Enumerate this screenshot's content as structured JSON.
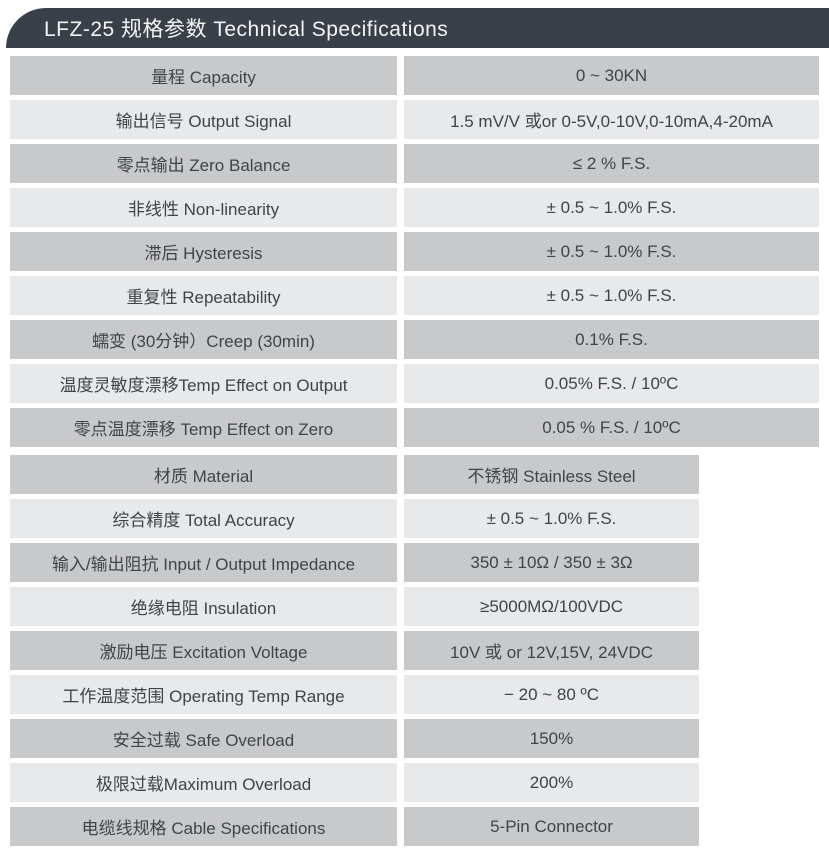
{
  "header": {
    "title": "LFZ-25 规格参数 Technical Specifications",
    "bar_color": "#394049",
    "text_color": "#f4f4f4"
  },
  "colors": {
    "row_dark": "#c8c9cb",
    "row_light": "#e8e9eb",
    "cell_text": "#404347",
    "page_background": "#ffffff"
  },
  "table": {
    "sections": [
      {
        "rows": [
          {
            "label": "量程 Capacity",
            "value": "0 ~ 30KN"
          },
          {
            "label": "输出信号 Output Signal",
            "value": "1.5 mV/V 或or 0-5V,0-10V,0-10mA,4-20mA"
          },
          {
            "label": "零点输出 Zero Balance",
            "value": "≤ 2 % F.S."
          },
          {
            "label": "非线性 Non-linearity",
            "value": "± 0.5 ~ 1.0% F.S."
          },
          {
            "label": "滞后 Hysteresis",
            "value": "± 0.5 ~ 1.0% F.S."
          },
          {
            "label": "重复性 Repeatability",
            "value": "± 0.5 ~ 1.0% F.S."
          },
          {
            "label": "蠕变 (30分钟）Creep (30min)",
            "value": "0.1% F.S."
          },
          {
            "label": "温度灵敏度漂移Temp Effect on Output",
            "value": "0.05% F.S. / 10ºC"
          },
          {
            "label": "零点温度漂移 Temp Effect on Zero",
            "value": "0.05 % F.S. / 10ºC"
          }
        ]
      },
      {
        "rows": [
          {
            "label": "材质 Material",
            "value": "不锈钢 Stainless Steel"
          },
          {
            "label": "综合精度 Total Accuracy",
            "value": "± 0.5 ~ 1.0% F.S."
          },
          {
            "label": "输入/输出阻抗 Input / Output Impedance",
            "value": "350 ± 10Ω / 350 ± 3Ω"
          },
          {
            "label": "绝缘电阻 Insulation",
            "value": "≥5000MΩ/100VDC"
          },
          {
            "label": "激励电压 Excitation Voltage",
            "value": "10V 或 or 12V,15V, 24VDC"
          },
          {
            "label": "工作温度范围 Operating Temp Range",
            "value": "− 20 ~ 80 ºC"
          },
          {
            "label": "安全过载 Safe Overload",
            "value": "150%"
          },
          {
            "label": "极限过载Maximum Overload",
            "value": "200%"
          },
          {
            "label": "电缆线规格 Cable Specifications",
            "value": "5-Pin Connector"
          }
        ]
      }
    ]
  }
}
